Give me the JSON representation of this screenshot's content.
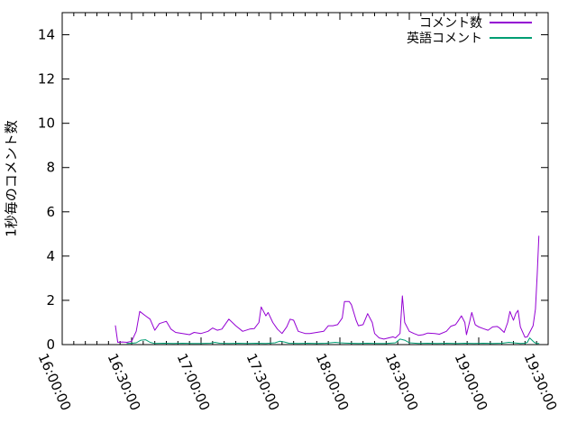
{
  "chart_data": {
    "type": "line",
    "title": "",
    "xlabel": "",
    "ylabel": "1秒毎のコメント数",
    "x_unit": "minutes after 16:00:00",
    "xlim_minutes": [
      0,
      210
    ],
    "ylim": [
      0,
      15
    ],
    "y_ticks": [
      0,
      2,
      4,
      6,
      8,
      10,
      12,
      14
    ],
    "x_ticks": [
      {
        "minute": 0,
        "label": "16:00:00"
      },
      {
        "minute": 30,
        "label": "16:30:00"
      },
      {
        "minute": 60,
        "label": "17:00:00"
      },
      {
        "minute": 90,
        "label": "17:30:00"
      },
      {
        "minute": 120,
        "label": "18:00:00"
      },
      {
        "minute": 150,
        "label": "18:30:00"
      },
      {
        "minute": 180,
        "label": "19:00:00"
      },
      {
        "minute": 210,
        "label": "19:30:00"
      }
    ],
    "minor_x_tick_every_minutes": 5,
    "grid": false,
    "legend_position": "top-right-inside",
    "axis_color": "#000000",
    "background_color": "#ffffff",
    "series": [
      {
        "name": "コメント数",
        "color": "#9400d3",
        "points": [
          [
            23,
            0.85
          ],
          [
            24,
            0.1
          ],
          [
            26,
            0.12
          ],
          [
            28,
            0.1
          ],
          [
            30,
            0.15
          ],
          [
            32,
            0.6
          ],
          [
            33.5,
            1.5
          ],
          [
            36,
            1.3
          ],
          [
            38,
            1.15
          ],
          [
            40,
            0.65
          ],
          [
            42,
            0.95
          ],
          [
            45,
            1.05
          ],
          [
            47,
            0.7
          ],
          [
            49,
            0.55
          ],
          [
            52,
            0.5
          ],
          [
            55,
            0.45
          ],
          [
            57,
            0.55
          ],
          [
            60,
            0.5
          ],
          [
            63,
            0.6
          ],
          [
            65,
            0.75
          ],
          [
            67,
            0.65
          ],
          [
            69,
            0.7
          ],
          [
            72,
            1.15
          ],
          [
            75,
            0.85
          ],
          [
            78,
            0.6
          ],
          [
            81,
            0.7
          ],
          [
            83,
            0.72
          ],
          [
            85,
            1.0
          ],
          [
            86,
            1.7
          ],
          [
            88,
            1.3
          ],
          [
            89,
            1.45
          ],
          [
            91,
            1.0
          ],
          [
            93,
            0.7
          ],
          [
            95,
            0.5
          ],
          [
            97,
            0.8
          ],
          [
            98.5,
            1.15
          ],
          [
            100,
            1.1
          ],
          [
            102,
            0.6
          ],
          [
            105,
            0.5
          ],
          [
            107,
            0.5
          ],
          [
            110,
            0.55
          ],
          [
            113,
            0.6
          ],
          [
            115,
            0.85
          ],
          [
            117,
            0.85
          ],
          [
            119,
            0.9
          ],
          [
            121,
            1.2
          ],
          [
            122,
            1.95
          ],
          [
            124,
            1.95
          ],
          [
            125,
            1.8
          ],
          [
            127,
            1.1
          ],
          [
            128,
            0.85
          ],
          [
            130,
            0.9
          ],
          [
            132,
            1.4
          ],
          [
            134,
            1.0
          ],
          [
            135,
            0.5
          ],
          [
            137,
            0.3
          ],
          [
            139,
            0.25
          ],
          [
            141,
            0.3
          ],
          [
            143,
            0.35
          ],
          [
            144,
            0.3
          ],
          [
            146,
            0.5
          ],
          [
            147,
            2.2
          ],
          [
            148,
            1.0
          ],
          [
            150,
            0.6
          ],
          [
            152,
            0.5
          ],
          [
            154,
            0.42
          ],
          [
            156,
            0.45
          ],
          [
            158,
            0.52
          ],
          [
            161,
            0.5
          ],
          [
            163,
            0.47
          ],
          [
            166,
            0.6
          ],
          [
            168,
            0.83
          ],
          [
            170,
            0.9
          ],
          [
            171,
            1.05
          ],
          [
            172.5,
            1.3
          ],
          [
            174,
            1.0
          ],
          [
            174.7,
            0.45
          ],
          [
            176,
            1.0
          ],
          [
            177,
            1.45
          ],
          [
            178.5,
            0.9
          ],
          [
            180,
            0.8
          ],
          [
            182,
            0.72
          ],
          [
            184,
            0.65
          ],
          [
            186,
            0.8
          ],
          [
            188,
            0.82
          ],
          [
            189,
            0.75
          ],
          [
            191,
            0.55
          ],
          [
            192.5,
            1.0
          ],
          [
            193.5,
            1.5
          ],
          [
            195,
            1.1
          ],
          [
            196,
            1.4
          ],
          [
            197,
            1.55
          ],
          [
            198,
            0.8
          ],
          [
            200,
            0.33
          ],
          [
            201,
            0.35
          ],
          [
            202,
            0.55
          ],
          [
            203.5,
            0.85
          ],
          [
            204.5,
            1.6
          ],
          [
            205.3,
            3.2
          ],
          [
            206,
            4.9
          ]
        ]
      },
      {
        "name": "英語コメント",
        "color": "#009e73",
        "points": [
          [
            28,
            0.05
          ],
          [
            30,
            0.06
          ],
          [
            32,
            0.08
          ],
          [
            34,
            0.2
          ],
          [
            36,
            0.22
          ],
          [
            38,
            0.1
          ],
          [
            40,
            0.05
          ],
          [
            44,
            0.06
          ],
          [
            48,
            0.05
          ],
          [
            52,
            0.06
          ],
          [
            56,
            0.05
          ],
          [
            60,
            0.05
          ],
          [
            64,
            0.06
          ],
          [
            66,
            0.1
          ],
          [
            68,
            0.06
          ],
          [
            72,
            0.05
          ],
          [
            76,
            0.06
          ],
          [
            80,
            0.05
          ],
          [
            84,
            0.06
          ],
          [
            88,
            0.05
          ],
          [
            92,
            0.08
          ],
          [
            94,
            0.15
          ],
          [
            96,
            0.12
          ],
          [
            98,
            0.06
          ],
          [
            102,
            0.05
          ],
          [
            106,
            0.06
          ],
          [
            110,
            0.05
          ],
          [
            114,
            0.06
          ],
          [
            118,
            0.1
          ],
          [
            120,
            0.08
          ],
          [
            124,
            0.06
          ],
          [
            128,
            0.05
          ],
          [
            132,
            0.06
          ],
          [
            136,
            0.05
          ],
          [
            140,
            0.05
          ],
          [
            144,
            0.08
          ],
          [
            146,
            0.25
          ],
          [
            148,
            0.2
          ],
          [
            150,
            0.08
          ],
          [
            154,
            0.05
          ],
          [
            158,
            0.06
          ],
          [
            162,
            0.05
          ],
          [
            166,
            0.06
          ],
          [
            170,
            0.05
          ],
          [
            174,
            0.06
          ],
          [
            178,
            0.05
          ],
          [
            182,
            0.06
          ],
          [
            186,
            0.05
          ],
          [
            190,
            0.06
          ],
          [
            193,
            0.1
          ],
          [
            195,
            0.08
          ],
          [
            198,
            0.05
          ],
          [
            200,
            0.06
          ],
          [
            201,
            0.1
          ],
          [
            202,
            0.3
          ],
          [
            204,
            0.1
          ],
          [
            205,
            0.05
          ],
          [
            206,
            0.05
          ]
        ]
      }
    ]
  }
}
